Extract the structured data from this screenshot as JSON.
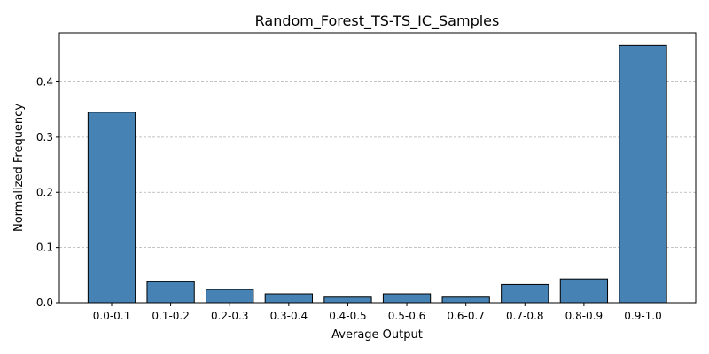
{
  "chart_data": {
    "type": "bar",
    "title": "Random_Forest_TS-TS_IC_Samples",
    "xlabel": "Average Output",
    "ylabel": "Normalized Frequency",
    "categories": [
      "0.0-0.1",
      "0.1-0.2",
      "0.2-0.3",
      "0.3-0.4",
      "0.4-0.5",
      "0.5-0.6",
      "0.6-0.7",
      "0.7-0.8",
      "0.8-0.9",
      "0.9-1.0"
    ],
    "values": [
      0.345,
      0.038,
      0.024,
      0.016,
      0.01,
      0.016,
      0.01,
      0.033,
      0.043,
      0.466
    ],
    "ylim": [
      0,
      0.489
    ],
    "yticks": [
      0.0,
      0.1,
      0.2,
      0.3,
      0.4
    ],
    "ytick_labels": [
      "0.0",
      "0.1",
      "0.2",
      "0.3",
      "0.4"
    ],
    "grid": "y-dashed",
    "bar_color": "#4682b4",
    "edge_color": "#000000"
  }
}
